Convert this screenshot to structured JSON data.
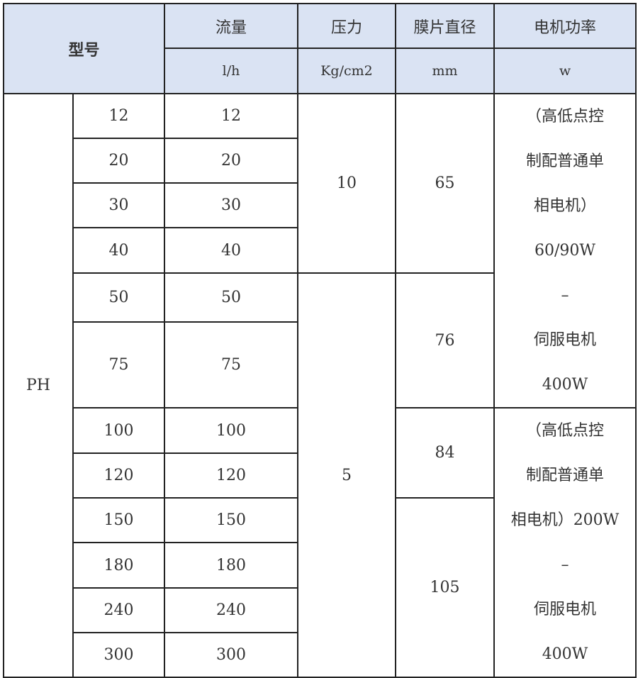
{
  "header": {
    "model": "型号",
    "flow": "流量",
    "flow_unit": "l/h",
    "pressure": "压力",
    "pressure_unit": "Kg/cm2",
    "diameter": "膜片直径",
    "diameter_unit": "mm",
    "power": "电机功率",
    "power_unit": "w"
  },
  "series": "PH",
  "rows": [
    {
      "model": "12",
      "flow": "12"
    },
    {
      "model": "20",
      "flow": "20"
    },
    {
      "model": "30",
      "flow": "30"
    },
    {
      "model": "40",
      "flow": "40"
    },
    {
      "model": "50",
      "flow": "50"
    },
    {
      "model": "75",
      "flow": "75"
    },
    {
      "model": "100",
      "flow": "100"
    },
    {
      "model": "120",
      "flow": "120"
    },
    {
      "model": "150",
      "flow": "150"
    },
    {
      "model": "180",
      "flow": "180"
    },
    {
      "model": "240",
      "flow": "240"
    },
    {
      "model": "300",
      "flow": "300"
    }
  ],
  "pressure": [
    "10",
    "5"
  ],
  "diameter": [
    "65",
    "76",
    "84",
    "105"
  ],
  "power": [
    [
      "（高低点控",
      "制配普通单",
      "相电机）",
      "60/90W",
      "–",
      "伺服电机",
      "400W"
    ],
    [
      "（高低点控",
      "制配普通单",
      "相电机）200W",
      "–",
      "伺服电机",
      "400W"
    ]
  ]
}
